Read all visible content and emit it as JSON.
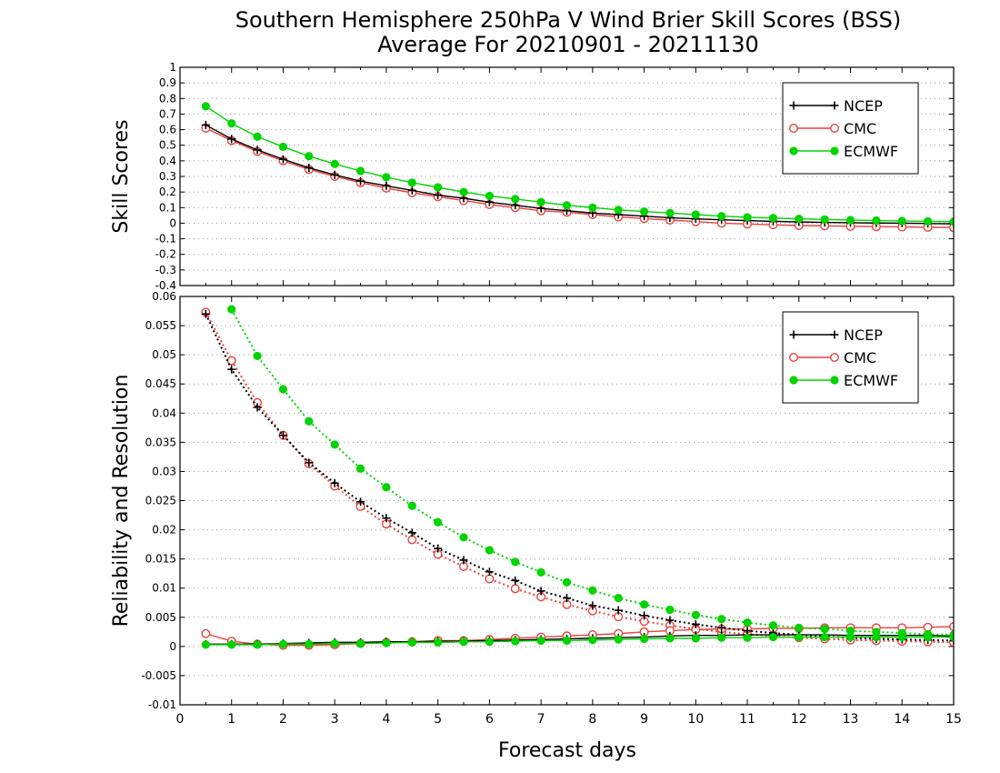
{
  "title_line1": "Southern Hemisphere 250hPa V Wind Brier Skill Scores (BSS)",
  "title_line2": "Average For 20210901 - 20211130",
  "xlabel": "Forecast days",
  "x_ticks": [
    "0",
    "1",
    "2",
    "3",
    "4",
    "5",
    "6",
    "7",
    "8",
    "9",
    "10",
    "11",
    "12",
    "13",
    "14",
    "15"
  ],
  "colors": {
    "NCEP": "#000000",
    "CMC": "#e8413c",
    "ECMWF": "#00d400"
  },
  "chart_data": [
    {
      "type": "line",
      "ylabel": "Skill Scores",
      "xlim": [
        0,
        15
      ],
      "ylim": [
        -0.4,
        1
      ],
      "y_ticks": [
        "-0.4",
        "-0.3",
        "-0.2",
        "-0.1",
        "0",
        "0.1",
        "0.2",
        "0.3",
        "0.4",
        "0.5",
        "0.6",
        "0.7",
        "0.8",
        "0.9",
        "1"
      ],
      "grid": true,
      "legend_position": "top-right",
      "legend": [
        "NCEP",
        "CMC",
        "ECMWF"
      ],
      "x": [
        0.5,
        1,
        1.5,
        2,
        2.5,
        3,
        3.5,
        4,
        4.5,
        5,
        5.5,
        6,
        6.5,
        7,
        7.5,
        8,
        8.5,
        9,
        9.5,
        10,
        10.5,
        11,
        11.5,
        12,
        12.5,
        13,
        13.5,
        14,
        14.5,
        15
      ],
      "series": [
        {
          "name": "NCEP",
          "style": "solid",
          "marker": "plus",
          "values": [
            0.63,
            0.54,
            0.47,
            0.41,
            0.355,
            0.31,
            0.27,
            0.24,
            0.21,
            0.18,
            0.16,
            0.135,
            0.115,
            0.095,
            0.08,
            0.065,
            0.055,
            0.045,
            0.035,
            0.028,
            0.022,
            0.017,
            0.012,
            0.008,
            0.005,
            0.003,
            0.001,
            0.0,
            -0.002,
            -0.004
          ]
        },
        {
          "name": "CMC",
          "style": "solid",
          "marker": "open-circle",
          "values": [
            0.61,
            0.53,
            0.46,
            0.4,
            0.345,
            0.3,
            0.26,
            0.225,
            0.195,
            0.17,
            0.145,
            0.12,
            0.1,
            0.08,
            0.07,
            0.055,
            0.04,
            0.03,
            0.02,
            0.01,
            0.0,
            -0.005,
            -0.01,
            -0.015,
            -0.017,
            -0.02,
            -0.022,
            -0.024,
            -0.026,
            -0.028
          ]
        },
        {
          "name": "ECMWF",
          "style": "solid",
          "marker": "filled-circle",
          "values": [
            0.75,
            0.64,
            0.555,
            0.49,
            0.43,
            0.38,
            0.335,
            0.295,
            0.26,
            0.23,
            0.2,
            0.175,
            0.155,
            0.135,
            0.115,
            0.1,
            0.085,
            0.075,
            0.065,
            0.055,
            0.045,
            0.038,
            0.033,
            0.028,
            0.024,
            0.02,
            0.017,
            0.014,
            0.012,
            0.01
          ]
        }
      ]
    },
    {
      "type": "line",
      "ylabel": "Reliability and Resolution",
      "xlim": [
        0,
        15
      ],
      "ylim": [
        -0.01,
        0.06
      ],
      "y_ticks": [
        "-0.01",
        "-0.005",
        "0",
        "0.005",
        "0.01",
        "0.015",
        "0.02",
        "0.025",
        "0.03",
        "0.035",
        "0.04",
        "0.045",
        "0.05",
        "0.055",
        "0.06"
      ],
      "grid": true,
      "legend_position": "top-right",
      "legend": [
        "NCEP",
        "CMC",
        "ECMWF"
      ],
      "x": [
        0.5,
        1,
        1.5,
        2,
        2.5,
        3,
        3.5,
        4,
        4.5,
        5,
        5.5,
        6,
        6.5,
        7,
        7.5,
        8,
        8.5,
        9,
        9.5,
        10,
        10.5,
        11,
        11.5,
        12,
        12.5,
        13,
        13.5,
        14,
        14.5,
        15
      ],
      "series": [
        {
          "name": "NCEP",
          "role": "resolution",
          "style": "dotted",
          "marker": "plus",
          "values": [
            0.057,
            0.0475,
            0.041,
            0.0362,
            0.0315,
            0.028,
            0.0248,
            0.022,
            0.0195,
            0.0168,
            0.0148,
            0.0128,
            0.0113,
            0.0095,
            0.0083,
            0.007,
            0.0062,
            0.0053,
            0.0045,
            0.0038,
            0.0032,
            0.0027,
            0.0023,
            0.002,
            0.0017,
            0.0015,
            0.0013,
            0.0012,
            0.0011,
            0.001
          ]
        },
        {
          "name": "CMC",
          "role": "resolution",
          "style": "dotted",
          "marker": "open-circle",
          "values": [
            0.0573,
            0.049,
            0.0418,
            0.0362,
            0.0313,
            0.0275,
            0.024,
            0.021,
            0.0183,
            0.0158,
            0.0137,
            0.0116,
            0.0099,
            0.0085,
            0.0072,
            0.0061,
            0.0051,
            0.0043,
            0.0036,
            0.003,
            0.0025,
            0.0021,
            0.0018,
            0.0015,
            0.0013,
            0.0011,
            0.001,
            0.0009,
            0.0008,
            0.0007
          ]
        },
        {
          "name": "ECMWF",
          "role": "resolution",
          "style": "dotted",
          "marker": "filled-circle",
          "values": [
            null,
            0.0578,
            0.0498,
            0.0441,
            0.0386,
            0.0346,
            0.0305,
            0.0273,
            0.0241,
            0.0213,
            0.0187,
            0.0165,
            0.0145,
            0.0127,
            0.011,
            0.0096,
            0.0083,
            0.0072,
            0.0063,
            0.0054,
            0.0047,
            0.0041,
            0.0036,
            0.0032,
            0.003,
            0.0027,
            0.0025,
            0.0023,
            0.0021,
            0.002
          ]
        },
        {
          "name": "NCEP",
          "role": "reliability",
          "style": "solid",
          "marker": "plus",
          "values": [
            0.0004,
            0.0004,
            0.0004,
            0.0005,
            0.0006,
            0.0007,
            0.0007,
            0.0008,
            0.0008,
            0.0009,
            0.0009,
            0.001,
            0.0011,
            0.0012,
            0.0013,
            0.0014,
            0.0015,
            0.0016,
            0.0018,
            0.0019,
            0.0019,
            0.002,
            0.002,
            0.002,
            0.002,
            0.0019,
            0.0019,
            0.0019,
            0.0019,
            0.0018
          ]
        },
        {
          "name": "CMC",
          "role": "reliability",
          "style": "solid",
          "marker": "open-circle",
          "values": [
            0.0022,
            0.0009,
            0.0004,
            0.0002,
            0.0002,
            0.0003,
            0.0005,
            0.0007,
            0.0008,
            0.001,
            0.001,
            0.0012,
            0.0014,
            0.0016,
            0.0018,
            0.002,
            0.0022,
            0.0025,
            0.0027,
            0.0029,
            0.003,
            0.003,
            0.0031,
            0.0031,
            0.0032,
            0.0032,
            0.0032,
            0.0032,
            0.0033,
            0.0034
          ]
        },
        {
          "name": "ECMWF",
          "role": "reliability",
          "style": "solid",
          "marker": "filled-circle",
          "values": [
            0.0003,
            0.0003,
            0.0003,
            0.0004,
            0.0004,
            0.0005,
            0.0005,
            0.0006,
            0.0007,
            0.0007,
            0.0008,
            0.0008,
            0.0009,
            0.001,
            0.001,
            0.0011,
            0.0012,
            0.0013,
            0.0014,
            0.0014,
            0.0015,
            0.0015,
            0.0016,
            0.0016,
            0.0016,
            0.0016,
            0.0016,
            0.0016,
            0.0016,
            0.0016
          ]
        }
      ]
    }
  ]
}
